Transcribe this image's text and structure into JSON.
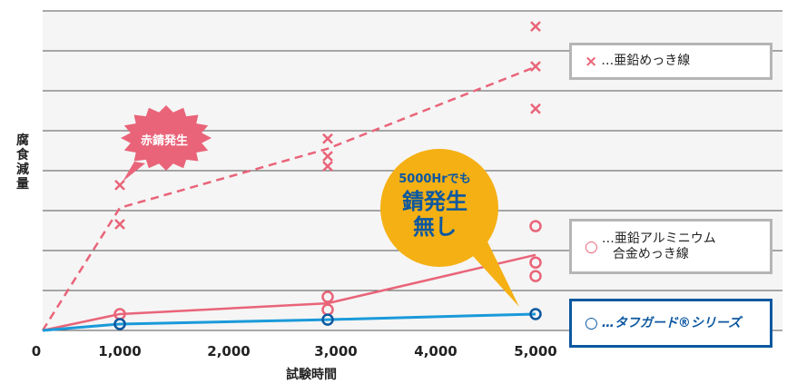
{
  "chart_data": {
    "type": "line",
    "title": "",
    "xlabel": "試験時間",
    "ylabel": "腐食減量",
    "x_ticks": [
      "0",
      "1,000",
      "2,000",
      "3,000",
      "4,000",
      "5,000"
    ],
    "xlim": [
      0,
      5000
    ],
    "y_ticks": [],
    "grid": true,
    "gridlines_y_count": 9,
    "series": [
      {
        "name": "亜鉛めっき線",
        "marker": "×",
        "line_style": "dashed",
        "color": "#e96479",
        "line": [
          {
            "x": 0,
            "y": 0
          },
          {
            "x": 1000,
            "y": 3.07
          },
          {
            "x": 3000,
            "y": 4.55
          },
          {
            "x": 5000,
            "y": 6.6
          }
        ],
        "points": [
          {
            "x": 1000,
            "y": 3.64
          },
          {
            "x": 1000,
            "y": 2.66
          },
          {
            "x": 3000,
            "y": 4.8
          },
          {
            "x": 3000,
            "y": 4.36
          },
          {
            "x": 3000,
            "y": 4.11
          },
          {
            "x": 5000,
            "y": 7.61
          },
          {
            "x": 5000,
            "y": 6.61
          },
          {
            "x": 5000,
            "y": 5.55
          }
        ]
      },
      {
        "name": "亜鉛アルミニウム合金めっき線",
        "marker": "○",
        "line_style": "solid",
        "color": "#e96479",
        "line": [
          {
            "x": 0,
            "y": 0
          },
          {
            "x": 1000,
            "y": 0.41
          },
          {
            "x": 3000,
            "y": 0.68
          },
          {
            "x": 5000,
            "y": 1.89
          }
        ],
        "points": [
          {
            "x": 1000,
            "y": 0.41
          },
          {
            "x": 3000,
            "y": 0.84
          },
          {
            "x": 3000,
            "y": 0.52
          },
          {
            "x": 5000,
            "y": 2.61
          },
          {
            "x": 5000,
            "y": 1.7
          },
          {
            "x": 5000,
            "y": 1.36
          }
        ]
      },
      {
        "name": "タフガード®シリーズ",
        "marker": "○",
        "line_style": "solid",
        "color": "#1a9ad9",
        "marker_color": "#0c58a0",
        "line": [
          {
            "x": 0,
            "y": 0
          },
          {
            "x": 1000,
            "y": 0.16
          },
          {
            "x": 3000,
            "y": 0.27
          },
          {
            "x": 5000,
            "y": 0.41
          }
        ],
        "points": [
          {
            "x": 1000,
            "y": 0.16
          },
          {
            "x": 3000,
            "y": 0.27
          },
          {
            "x": 5000,
            "y": 0.41
          }
        ]
      }
    ],
    "annotations": [
      {
        "text": "赤錆発生",
        "near": {
          "x": 1000,
          "series": "亜鉛めっき線"
        },
        "shape": "burst",
        "color": "#e96479"
      },
      {
        "text": "5000Hrでも 錆発生無し",
        "near": {
          "x": 5000,
          "series": "タフガード®シリーズ"
        },
        "shape": "speech-circle",
        "color": "#f5b014"
      }
    ],
    "legend_position": "right"
  },
  "labels": {
    "ylabel": "腐食減量",
    "xlabel": "試験時間",
    "xticks": [
      "0",
      "1,000",
      "2,000",
      "3,000",
      "4,000",
      "5,000"
    ],
    "burst": "赤錆発生",
    "bubble_line1": "5000Hrでも",
    "bubble_line2": "錆発生",
    "bubble_line3": "無し"
  },
  "legend": [
    {
      "marker": "×",
      "label": "…亜鉛めっき線"
    },
    {
      "marker": "○",
      "label_line1": "…亜鉛アルミニウム",
      "label_line2": "合金めっき線"
    },
    {
      "marker": "○",
      "label": "…タフガード®シリーズ"
    }
  ],
  "colors": {
    "pink": "#e96479",
    "blue_line": "#1a9ad9",
    "blue_dark": "#0c58a0",
    "yellow": "#f5b014",
    "plot_bg": "#f5f5f5",
    "grid": "#555555"
  }
}
